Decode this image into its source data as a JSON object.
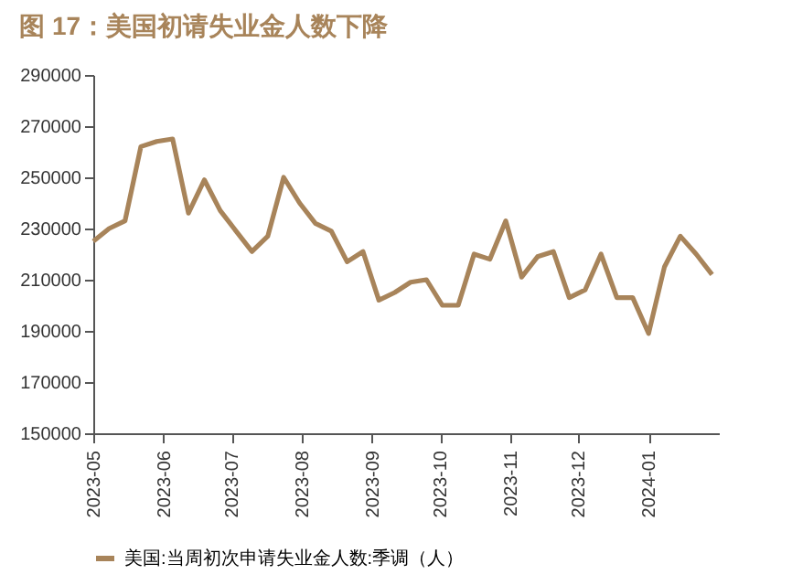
{
  "chart_data": {
    "type": "line",
    "title": "图 17：美国初请失业金人数下降",
    "x": [
      "2023-05-01",
      "2023-05-08",
      "2023-05-15",
      "2023-05-22",
      "2023-05-29",
      "2023-06-05",
      "2023-06-12",
      "2023-06-19",
      "2023-06-26",
      "2023-07-03",
      "2023-07-10",
      "2023-07-17",
      "2023-07-24",
      "2023-07-31",
      "2023-08-07",
      "2023-08-14",
      "2023-08-21",
      "2023-08-28",
      "2023-09-04",
      "2023-09-11",
      "2023-09-18",
      "2023-09-25",
      "2023-10-02",
      "2023-10-09",
      "2023-10-16",
      "2023-10-23",
      "2023-10-30",
      "2023-11-06",
      "2023-11-13",
      "2023-11-20",
      "2023-11-27",
      "2023-12-04",
      "2023-12-11",
      "2023-12-18",
      "2023-12-25",
      "2024-01-01",
      "2024-01-08",
      "2024-01-15",
      "2024-01-22",
      "2024-01-29"
    ],
    "series": [
      {
        "name": "美国:当周初次申请失业金人数:季调（人）",
        "color": "#a8845a",
        "values": [
          225000,
          230000,
          233000,
          262000,
          264000,
          265000,
          236000,
          249000,
          237000,
          229000,
          221000,
          227000,
          250000,
          240000,
          232000,
          229000,
          217000,
          221000,
          202000,
          205000,
          209000,
          210000,
          200000,
          200000,
          220000,
          218000,
          233000,
          211000,
          219000,
          221000,
          203000,
          206000,
          220000,
          203000,
          203000,
          189000,
          215000,
          227000,
          220000,
          212000
        ]
      }
    ],
    "xlim": [
      "2023-05-01",
      "2024-02-01"
    ],
    "xticks": [
      "2023-05",
      "2023-06",
      "2023-07",
      "2023-08",
      "2023-09",
      "2023-10",
      "2023-11",
      "2023-12",
      "2024-01"
    ],
    "ylim": [
      150000,
      290000
    ],
    "yticks": [
      150000,
      170000,
      190000,
      210000,
      230000,
      250000,
      270000,
      290000
    ],
    "grid": false,
    "legend": "bottom",
    "marker": "none",
    "line_style": "solid"
  }
}
